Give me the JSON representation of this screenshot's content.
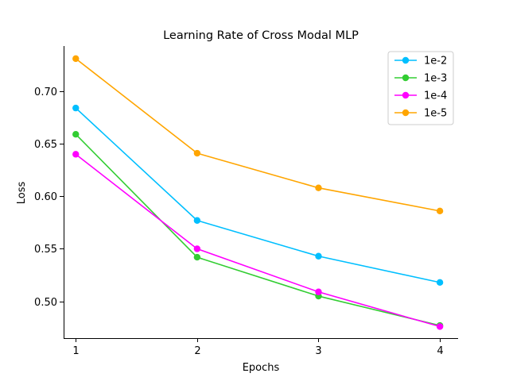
{
  "chart_data": {
    "type": "line",
    "title": "Learning Rate of Cross Modal MLP",
    "xlabel": "Epochs",
    "ylabel": "Loss",
    "x": [
      1,
      2,
      3,
      4
    ],
    "x_ticks": [
      "1",
      "2",
      "3",
      "4"
    ],
    "y_ticks": [
      0.5,
      0.55,
      0.6,
      0.65,
      0.7
    ],
    "y_tick_labels": [
      "0.50",
      "0.55",
      "0.60",
      "0.65",
      "0.70"
    ],
    "xlim": [
      0.9,
      4.15
    ],
    "ylim": [
      0.465,
      0.743
    ],
    "grid": false,
    "legend_position": "top-right",
    "series": [
      {
        "name": "1e-2",
        "color": "#00bfff",
        "values": [
          0.684,
          0.577,
          0.543,
          0.518
        ]
      },
      {
        "name": "1e-3",
        "color": "#32cd32",
        "values": [
          0.659,
          0.542,
          0.505,
          0.477
        ]
      },
      {
        "name": "1e-4",
        "color": "#ff00ff",
        "values": [
          0.64,
          0.55,
          0.509,
          0.476
        ]
      },
      {
        "name": "1e-5",
        "color": "#ffa500",
        "values": [
          0.731,
          0.641,
          0.608,
          0.586
        ]
      }
    ]
  }
}
